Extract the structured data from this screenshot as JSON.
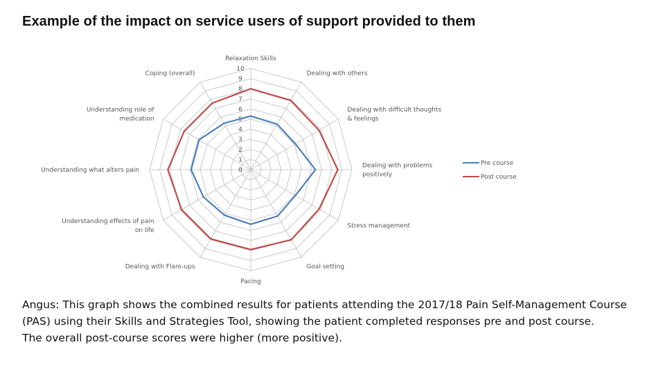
{
  "title": "Example of the impact on service users of support provided to them",
  "chart_data": {
    "type": "radar",
    "axes": [
      [
        "Relaxation Skills"
      ],
      [
        "Dealing with others"
      ],
      [
        "Dealing with difficult thoughts",
        "& feelings"
      ],
      [
        "Dealing with problems",
        "positively"
      ],
      [
        "Stress management"
      ],
      [
        "Goal setting"
      ],
      [
        "Pacing"
      ],
      [
        "Dealing with Flare-ups"
      ],
      [
        "Understanding effects of pain",
        "on life"
      ],
      [
        "Understanding what alters pain"
      ],
      [
        "Understanding role of",
        "medication"
      ],
      [
        "Coping (overall)"
      ]
    ],
    "rlim": [
      0,
      10
    ],
    "ticks": [
      "0",
      "1",
      "2",
      "3",
      "4",
      "5",
      "6",
      "7",
      "8",
      "9",
      "10"
    ],
    "grid": true,
    "legend_position": "right",
    "series": [
      {
        "name": "Pre course",
        "color": "#4a7ebb",
        "values": [
          5.3,
          5.2,
          5.1,
          6.4,
          5.1,
          5.3,
          5.4,
          5.2,
          5.4,
          5.9,
          5.9,
          5.3
        ]
      },
      {
        "name": "Post course",
        "color": "#be4b48",
        "values": [
          8.0,
          7.9,
          7.8,
          8.6,
          7.8,
          8.0,
          7.9,
          7.9,
          7.9,
          8.2,
          7.6,
          7.6
        ]
      }
    ]
  },
  "caption": {
    "line1": "Angus: This graph shows the combined results for patients attending the 2017/18 Pain Self-Management Course (PAS) using their Skills and Strategies Tool, showing the patient completed responses pre and post course.",
    "line2": "The overall post-course scores were higher (more positive)."
  }
}
